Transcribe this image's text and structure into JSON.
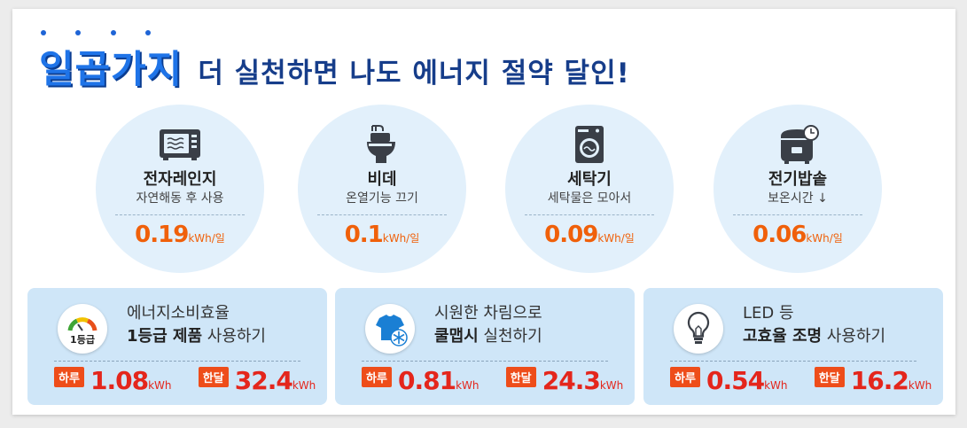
{
  "header": {
    "accent": "일곱가지",
    "rest": "더 실천하면 나도 에너지 절약 달인!"
  },
  "tips": [
    {
      "icon": "microwave-icon",
      "name": "전자레인지",
      "desc": "자연해동 후 사용",
      "value": "0.19",
      "unit": "kWh/일"
    },
    {
      "icon": "bidet-icon",
      "name": "비데",
      "desc": "온열기능 끄기",
      "value": "0.1",
      "unit": "kWh/일"
    },
    {
      "icon": "washing-machine-icon",
      "name": "세탁기",
      "desc": "세탁물은 모아서",
      "value": "0.09",
      "unit": "kWh/일"
    },
    {
      "icon": "rice-cooker-icon",
      "name": "전기밥솥",
      "desc": "보온시간 ↓",
      "value": "0.06",
      "unit": "kWh/일"
    }
  ],
  "panels": [
    {
      "icon": "energy-grade-icon",
      "icon_label": "1등급",
      "line1": "에너지소비효율",
      "line2_bold": "1등급 제품",
      "line2_rest": " 사용하기",
      "day_label": "하루",
      "day_value": "1.08",
      "day_unit": "kWh",
      "month_label": "한달",
      "month_value": "32.4",
      "month_unit": "kWh"
    },
    {
      "icon": "cool-shirt-icon",
      "line1": "시원한 차림으로",
      "line2_bold": "쿨맵시",
      "line2_rest": " 실천하기",
      "day_label": "하루",
      "day_value": "0.81",
      "day_unit": "kWh",
      "month_label": "한달",
      "month_value": "24.3",
      "month_unit": "kWh"
    },
    {
      "icon": "light-bulb-icon",
      "line1": "LED 등",
      "line2_bold": "고효율 조명",
      "line2_rest": " 사용하기",
      "day_label": "하루",
      "day_value": "0.54",
      "day_unit": "kWh",
      "month_label": "한달",
      "month_value": "16.2",
      "month_unit": "kWh"
    }
  ],
  "colors": {
    "accent_blue": "#1f74e8",
    "title_navy": "#163d8a",
    "value_orange": "#f0600a",
    "value_red": "#e4261c",
    "badge_orange": "#ee4d1a",
    "circle_bg": "#e2f0fb",
    "panel_bg": "#cfe6f8"
  }
}
